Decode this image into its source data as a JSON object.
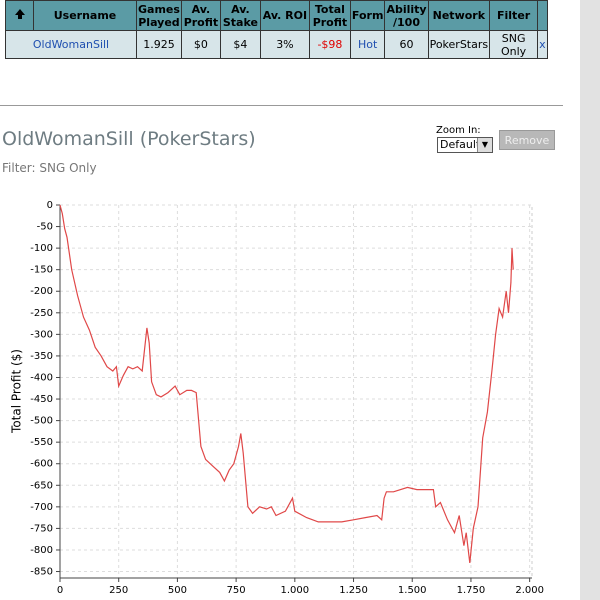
{
  "table": {
    "headers": [
      "Username",
      "Games Played",
      "Av. Profit",
      "Av. Stake",
      "Av. ROI",
      "Total Profit",
      "Form",
      "Ability /100",
      "Network",
      "Filter"
    ],
    "rows": [
      [
        "OldWomanSill",
        "1.925",
        "$0",
        "$4",
        "3%",
        "-$98",
        "Hot",
        "60",
        "PokerStars",
        "SNG Only",
        "x"
      ]
    ]
  },
  "title": "OldWomanSill (PokerStars)",
  "filter": "Filter: SNG Only",
  "zoom_label": "Zoom In:",
  "zoom_option": "Default",
  "button": "Remove",
  "chart_data": {
    "type": "line",
    "y_label": "Total Profit ($)",
    "xlim": [
      0,
      2010
    ],
    "ylim": [
      -865,
      0
    ],
    "xticks": [
      0,
      250,
      500,
      750,
      {
        "value": 1000,
        "label": "1.000"
      },
      {
        "value": 1250,
        "label": "1.250"
      },
      {
        "value": 1500,
        "label": "1.500"
      },
      {
        "value": 1750,
        "label": "1.750"
      },
      {
        "value": 2000,
        "label": "2.000"
      }
    ],
    "yticks": [
      0,
      -50,
      -100,
      -150,
      -200,
      -250,
      -300,
      -350,
      -400,
      -450,
      -500,
      -550,
      -600,
      -650,
      -700,
      -750,
      -800,
      -850
    ],
    "grid": true,
    "series": [
      {
        "color": "#e04848",
        "x": [
          0,
          10,
          20,
          30,
          50,
          75,
          100,
          125,
          150,
          175,
          200,
          225,
          240,
          250,
          270,
          290,
          310,
          330,
          350,
          370,
          380,
          390,
          410,
          430,
          460,
          490,
          510,
          540,
          560,
          580,
          600,
          620,
          650,
          680,
          700,
          720,
          740,
          760,
          770,
          780,
          800,
          820,
          850,
          880,
          900,
          920,
          960,
          990,
          1000,
          1050,
          1100,
          1150,
          1200,
          1250,
          1300,
          1350,
          1370,
          1380,
          1390,
          1420,
          1480,
          1520,
          1550,
          1590,
          1600,
          1620,
          1650,
          1680,
          1700,
          1720,
          1730,
          1745,
          1760,
          1780,
          1800,
          1820,
          1840,
          1855,
          1870,
          1885,
          1900,
          1910,
          1920,
          1925,
          1930
        ],
        "values": [
          0,
          -20,
          -55,
          -75,
          -150,
          -210,
          -260,
          -290,
          -330,
          -350,
          -375,
          -385,
          -375,
          -420,
          -395,
          -375,
          -380,
          -375,
          -385,
          -285,
          -320,
          -410,
          -440,
          -445,
          -435,
          -420,
          -440,
          -430,
          -430,
          -435,
          -560,
          -590,
          -605,
          -620,
          -640,
          -615,
          -600,
          -560,
          -530,
          -575,
          -700,
          -715,
          -700,
          -705,
          -700,
          -720,
          -710,
          -680,
          -710,
          -725,
          -735,
          -735,
          -735,
          -730,
          -725,
          -720,
          -730,
          -680,
          -665,
          -665,
          -655,
          -660,
          -660,
          -660,
          -700,
          -690,
          -730,
          -760,
          -720,
          -790,
          -760,
          -830,
          -750,
          -700,
          -540,
          -480,
          -380,
          -300,
          -240,
          -260,
          -200,
          -250,
          -180,
          -100,
          -150
        ]
      }
    ]
  }
}
